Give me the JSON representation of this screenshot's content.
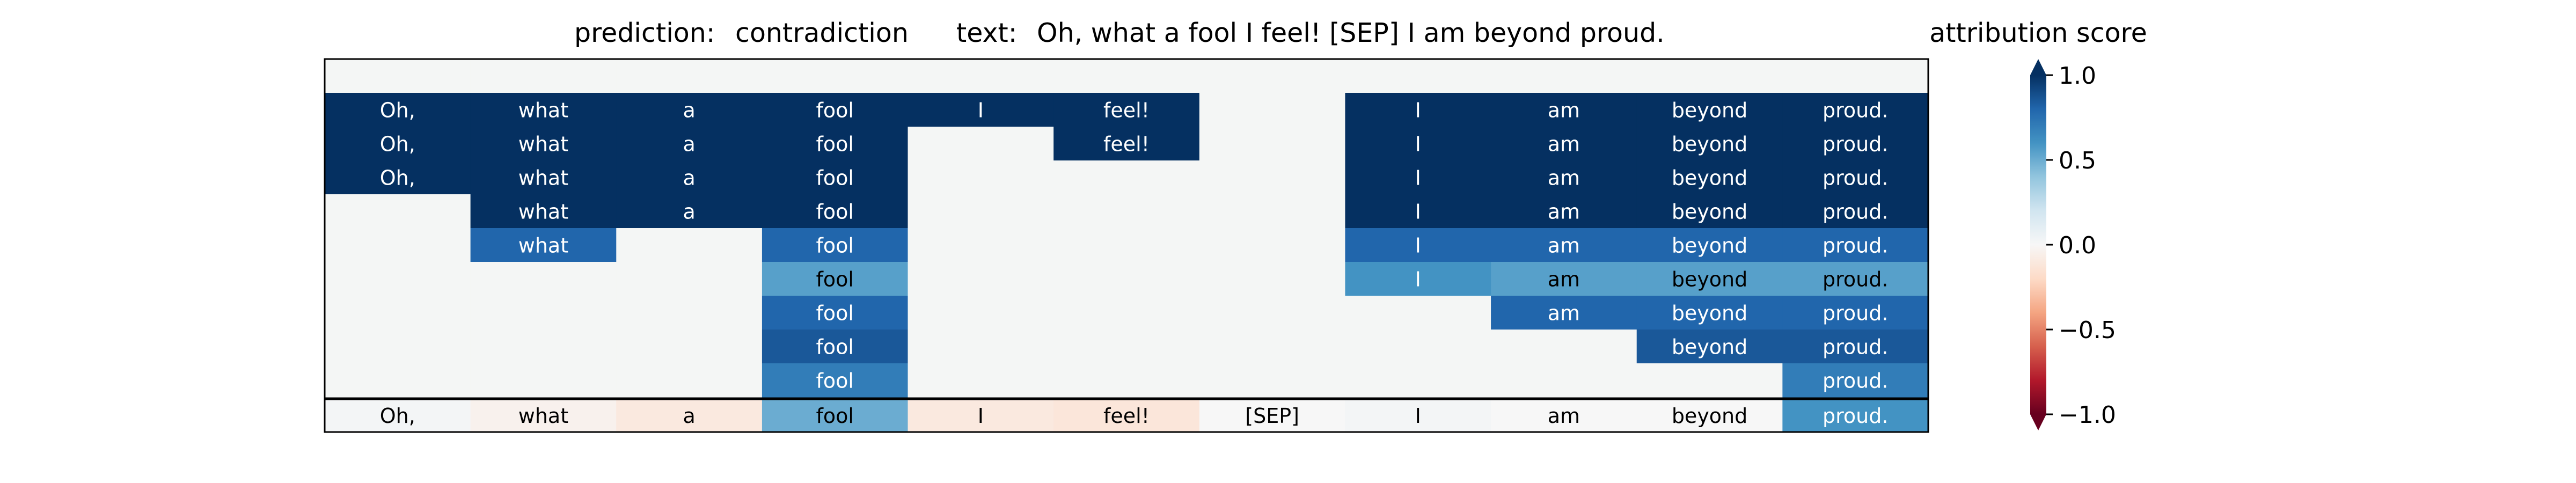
{
  "chart_data": {
    "type": "heatmap",
    "title": {
      "prediction_label": "prediction:",
      "prediction_value": "contradiction",
      "text_label": "text:",
      "text_value": "Oh, what a fool I feel! [SEP] I am beyond proud."
    },
    "tokens": [
      "Oh,",
      "what",
      "a",
      "fool",
      "I",
      "feel!",
      "[SEP]",
      "I",
      "am",
      "beyond",
      "proud."
    ],
    "rows": [
      [
        null,
        null,
        null,
        null,
        null,
        null,
        null,
        null,
        null,
        null,
        null
      ],
      [
        1.0,
        1.0,
        1.0,
        1.0,
        1.0,
        1.0,
        null,
        1.0,
        1.0,
        1.0,
        1.0
      ],
      [
        1.0,
        1.0,
        1.0,
        1.0,
        null,
        1.0,
        null,
        1.0,
        1.0,
        1.0,
        1.0
      ],
      [
        1.0,
        1.0,
        1.0,
        1.0,
        null,
        null,
        null,
        1.0,
        1.0,
        1.0,
        1.0
      ],
      [
        null,
        1.0,
        1.0,
        1.0,
        null,
        null,
        null,
        1.0,
        1.0,
        1.0,
        1.0
      ],
      [
        null,
        0.8,
        null,
        0.8,
        null,
        null,
        null,
        0.8,
        0.8,
        0.8,
        0.8
      ],
      [
        null,
        null,
        null,
        0.55,
        null,
        null,
        null,
        0.6,
        0.55,
        0.55,
        0.55
      ],
      [
        null,
        null,
        null,
        0.8,
        null,
        null,
        null,
        null,
        0.8,
        0.8,
        0.8
      ],
      [
        null,
        null,
        null,
        0.85,
        null,
        null,
        null,
        null,
        null,
        0.85,
        0.85
      ],
      [
        null,
        null,
        null,
        0.7,
        null,
        null,
        null,
        null,
        null,
        null,
        0.7
      ]
    ],
    "attribution": [
      0.02,
      -0.04,
      -0.1,
      0.5,
      -0.1,
      -0.12,
      0.0,
      0.02,
      0.0,
      0.0,
      0.6
    ],
    "empty_color": "#f4f6f5",
    "colorbar": {
      "label": "attribution score",
      "range": [
        -1.0,
        1.0
      ],
      "ticks": [
        1.0,
        0.5,
        0.0,
        -0.5,
        -1.0
      ],
      "tick_labels": [
        "1.0",
        "0.5",
        "0.0",
        "−0.5",
        "−1.0"
      ],
      "colormap": "RdBu",
      "extend": "both"
    }
  }
}
